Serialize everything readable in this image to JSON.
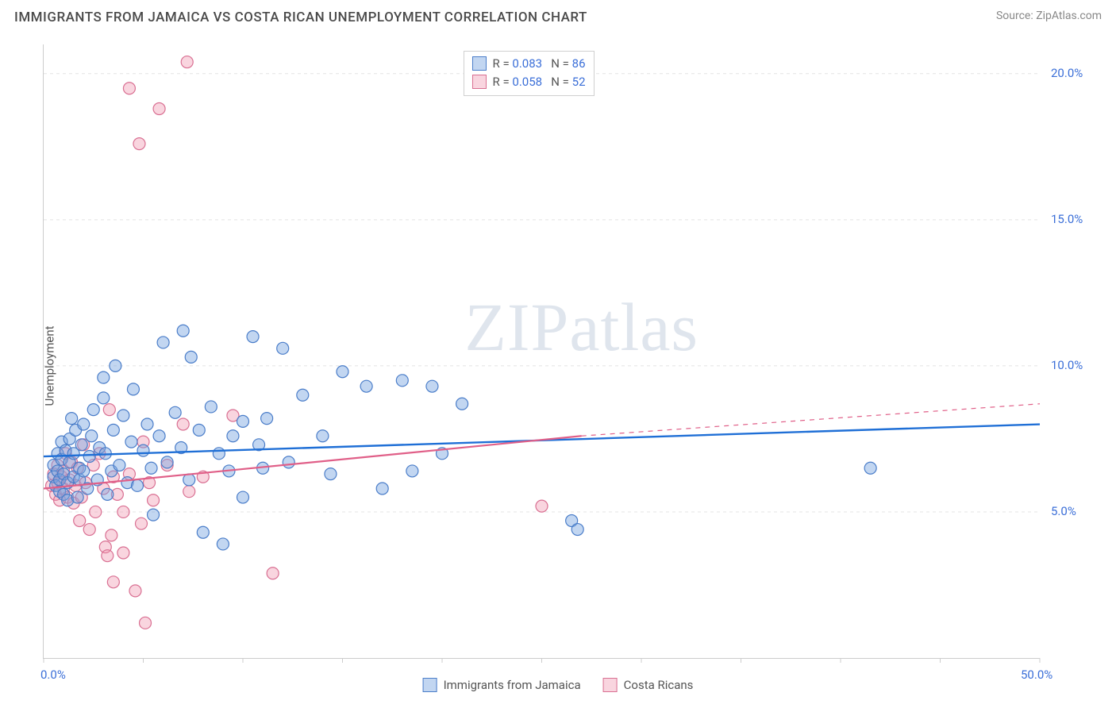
{
  "title": "IMMIGRANTS FROM JAMAICA VS COSTA RICAN UNEMPLOYMENT CORRELATION CHART",
  "source": "Source: ZipAtlas.com",
  "ylabel": "Unemployment",
  "watermark_a": "ZIP",
  "watermark_b": "atlas",
  "chart": {
    "type": "scatter",
    "xlim": [
      0,
      50
    ],
    "ylim": [
      0,
      21
    ],
    "xticks": [
      0,
      50
    ],
    "xtick_labels": [
      "0.0%",
      "50.0%"
    ],
    "yticks": [
      5,
      10,
      15,
      20
    ],
    "ytick_labels": [
      "5.0%",
      "10.0%",
      "15.0%",
      "20.0%"
    ],
    "x_minor_ticks": [
      0,
      5,
      10,
      15,
      20,
      25,
      30,
      35,
      40,
      45,
      50
    ],
    "grid_color": "#e4e4e4",
    "grid_dash": "4 4",
    "background": "#ffffff",
    "marker_radius": 7.5,
    "marker_stroke_width": 1.2,
    "series": [
      {
        "key": "jamaica",
        "label": "Immigrants from Jamaica",
        "fill": "rgba(120,165,225,0.45)",
        "stroke": "#4a7dc9",
        "line_color": "#1f6fd6",
        "line_width": 2.4,
        "trend": {
          "x1": 0,
          "y1": 6.9,
          "x2": 50,
          "y2": 8.0,
          "extrap_from_x": 50
        },
        "R": "0.083",
        "N": "86",
        "points": [
          [
            0.5,
            6.2
          ],
          [
            0.5,
            6.6
          ],
          [
            0.6,
            5.9
          ],
          [
            0.7,
            6.4
          ],
          [
            0.7,
            7.0
          ],
          [
            0.8,
            5.7
          ],
          [
            0.8,
            6.1
          ],
          [
            0.9,
            6.8
          ],
          [
            0.9,
            7.4
          ],
          [
            1.0,
            5.6
          ],
          [
            1.0,
            6.3
          ],
          [
            1.1,
            7.1
          ],
          [
            1.2,
            5.4
          ],
          [
            1.2,
            6.0
          ],
          [
            1.3,
            6.7
          ],
          [
            1.3,
            7.5
          ],
          [
            1.4,
            8.2
          ],
          [
            1.5,
            6.2
          ],
          [
            1.5,
            7.0
          ],
          [
            1.6,
            7.8
          ],
          [
            1.7,
            5.5
          ],
          [
            1.8,
            6.5
          ],
          [
            1.8,
            6.1
          ],
          [
            1.9,
            7.3
          ],
          [
            2.0,
            8.0
          ],
          [
            2.0,
            6.4
          ],
          [
            2.2,
            5.8
          ],
          [
            2.3,
            6.9
          ],
          [
            2.4,
            7.6
          ],
          [
            2.5,
            8.5
          ],
          [
            2.7,
            6.1
          ],
          [
            2.8,
            7.2
          ],
          [
            3.0,
            8.9
          ],
          [
            3.0,
            9.6
          ],
          [
            3.1,
            7.0
          ],
          [
            3.2,
            5.6
          ],
          [
            3.4,
            6.4
          ],
          [
            3.5,
            7.8
          ],
          [
            3.6,
            10.0
          ],
          [
            3.8,
            6.6
          ],
          [
            4.0,
            8.3
          ],
          [
            4.2,
            6.0
          ],
          [
            4.4,
            7.4
          ],
          [
            4.5,
            9.2
          ],
          [
            4.7,
            5.9
          ],
          [
            5.0,
            7.1
          ],
          [
            5.2,
            8.0
          ],
          [
            5.4,
            6.5
          ],
          [
            5.5,
            4.9
          ],
          [
            5.8,
            7.6
          ],
          [
            6.0,
            10.8
          ],
          [
            6.2,
            6.7
          ],
          [
            6.6,
            8.4
          ],
          [
            6.9,
            7.2
          ],
          [
            7.0,
            11.2
          ],
          [
            7.3,
            6.1
          ],
          [
            7.4,
            10.3
          ],
          [
            7.8,
            7.8
          ],
          [
            8.0,
            4.3
          ],
          [
            8.4,
            8.6
          ],
          [
            8.8,
            7.0
          ],
          [
            9.0,
            3.9
          ],
          [
            9.3,
            6.4
          ],
          [
            9.5,
            7.6
          ],
          [
            10.0,
            8.1
          ],
          [
            10.0,
            5.5
          ],
          [
            10.5,
            11.0
          ],
          [
            10.8,
            7.3
          ],
          [
            11.0,
            6.5
          ],
          [
            11.2,
            8.2
          ],
          [
            12.0,
            10.6
          ],
          [
            12.3,
            6.7
          ],
          [
            13.0,
            9.0
          ],
          [
            14.0,
            7.6
          ],
          [
            14.4,
            6.3
          ],
          [
            15.0,
            9.8
          ],
          [
            16.2,
            9.3
          ],
          [
            17.0,
            5.8
          ],
          [
            18.0,
            9.5
          ],
          [
            18.5,
            6.4
          ],
          [
            19.5,
            9.3
          ],
          [
            20.0,
            7.0
          ],
          [
            21.0,
            8.7
          ],
          [
            26.5,
            4.7
          ],
          [
            26.8,
            4.4
          ],
          [
            41.5,
            6.5
          ]
        ]
      },
      {
        "key": "costarica",
        "label": "Costa Ricans",
        "fill": "rgba(240,150,175,0.40)",
        "stroke": "#d96f92",
        "line_color": "#e05f88",
        "line_width": 2.2,
        "trend": {
          "x1": 0,
          "y1": 5.8,
          "x2": 27,
          "y2": 7.6,
          "extrap_from_x": 27,
          "extrap_x2": 50,
          "extrap_y2": 8.7
        },
        "R": "0.058",
        "N": "52",
        "points": [
          [
            0.4,
            5.9
          ],
          [
            0.5,
            6.3
          ],
          [
            0.6,
            5.6
          ],
          [
            0.7,
            6.0
          ],
          [
            0.7,
            6.6
          ],
          [
            0.8,
            5.4
          ],
          [
            0.9,
            6.2
          ],
          [
            1.0,
            5.8
          ],
          [
            1.0,
            6.4
          ],
          [
            1.1,
            7.0
          ],
          [
            1.2,
            5.5
          ],
          [
            1.3,
            6.1
          ],
          [
            1.4,
            6.7
          ],
          [
            1.5,
            5.3
          ],
          [
            1.6,
            5.9
          ],
          [
            1.7,
            6.5
          ],
          [
            1.8,
            4.7
          ],
          [
            1.9,
            5.5
          ],
          [
            2.0,
            7.3
          ],
          [
            2.1,
            6.0
          ],
          [
            2.3,
            4.4
          ],
          [
            2.5,
            6.6
          ],
          [
            2.6,
            5.0
          ],
          [
            2.8,
            7.0
          ],
          [
            3.0,
            5.8
          ],
          [
            3.1,
            3.8
          ],
          [
            3.2,
            3.5
          ],
          [
            3.3,
            8.5
          ],
          [
            3.4,
            4.2
          ],
          [
            3.5,
            6.2
          ],
          [
            3.5,
            2.6
          ],
          [
            3.7,
            5.6
          ],
          [
            4.0,
            3.6
          ],
          [
            4.0,
            5.0
          ],
          [
            4.3,
            19.5
          ],
          [
            4.3,
            6.3
          ],
          [
            4.6,
            2.3
          ],
          [
            4.8,
            17.6
          ],
          [
            4.9,
            4.6
          ],
          [
            5.0,
            7.4
          ],
          [
            5.1,
            1.2
          ],
          [
            5.3,
            6.0
          ],
          [
            5.5,
            5.4
          ],
          [
            5.8,
            18.8
          ],
          [
            6.2,
            6.6
          ],
          [
            7.0,
            8.0
          ],
          [
            7.2,
            20.4
          ],
          [
            7.3,
            5.7
          ],
          [
            8.0,
            6.2
          ],
          [
            9.5,
            8.3
          ],
          [
            11.5,
            2.9
          ],
          [
            25.0,
            5.2
          ]
        ]
      }
    ]
  },
  "stats_box": {
    "prefix_r": "R =",
    "prefix_n": "N ="
  }
}
